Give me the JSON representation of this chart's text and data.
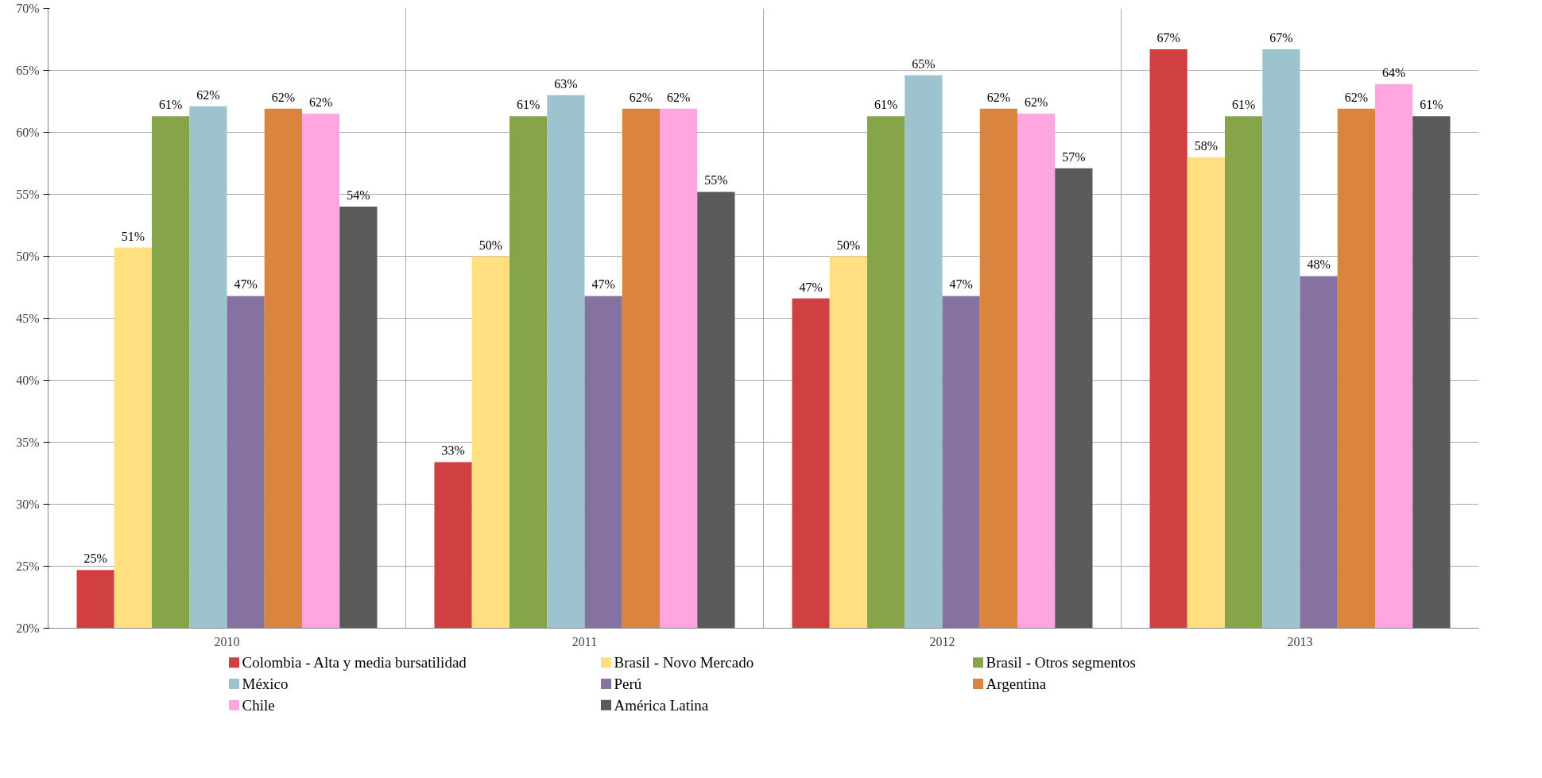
{
  "chart_data": {
    "type": "bar",
    "categories": [
      "2010",
      "2011",
      "2012",
      "2013"
    ],
    "series": [
      {
        "name": "Colombia - Alta y media bursatilidad",
        "color": "#d04040",
        "values": [
          24.7,
          33.4,
          46.6,
          66.7
        ],
        "value_labels": [
          "25%",
          "33%",
          "47%",
          "67%"
        ]
      },
      {
        "name": "Brasil - Novo Mercado",
        "color": "#ffdf80",
        "values": [
          50.7,
          50.0,
          50.0,
          58.0
        ],
        "value_labels": [
          "51%",
          "50%",
          "50%",
          "58%"
        ]
      },
      {
        "name": "Brasil - Otros segmentos",
        "color": "#86a44a",
        "values": [
          61.3,
          61.3,
          61.3,
          61.3
        ],
        "value_labels": [
          "61%",
          "61%",
          "61%",
          "61%"
        ]
      },
      {
        "name": "México",
        "color": "#9dc3cf",
        "values": [
          62.1,
          63.0,
          64.6,
          66.7
        ],
        "value_labels": [
          "62%",
          "63%",
          "65%",
          "67%"
        ]
      },
      {
        "name": "Perú",
        "color": "#8672a0",
        "values": [
          46.8,
          46.8,
          46.8,
          48.4
        ],
        "value_labels": [
          "47%",
          "47%",
          "47%",
          "48%"
        ]
      },
      {
        "name": "Argentina",
        "color": "#db843d",
        "values": [
          61.9,
          61.9,
          61.9,
          61.9
        ],
        "value_labels": [
          "62%",
          "62%",
          "62%",
          "62%"
        ]
      },
      {
        "name": "Chile",
        "color": "#ffa6e0",
        "values": [
          61.5,
          61.9,
          61.5,
          63.9
        ],
        "value_labels": [
          "62%",
          "62%",
          "62%",
          "64%"
        ]
      },
      {
        "name": "América Latina",
        "color": "#5a5a5a",
        "values": [
          54.0,
          55.2,
          57.1,
          61.3
        ],
        "value_labels": [
          "54%",
          "55%",
          "57%",
          "61%"
        ]
      }
    ],
    "ylim": [
      20,
      70
    ],
    "yticks": [
      {
        "value": 20,
        "label": "20%"
      },
      {
        "value": 25,
        "label": "25%"
      },
      {
        "value": 30,
        "label": "30%"
      },
      {
        "value": 35,
        "label": "35%"
      },
      {
        "value": 40,
        "label": "40%"
      },
      {
        "value": 45,
        "label": "45%"
      },
      {
        "value": 50,
        "label": "50%"
      },
      {
        "value": 55,
        "label": "55%"
      },
      {
        "value": 60,
        "label": "60%"
      },
      {
        "value": 65,
        "label": "65%"
      },
      {
        "value": 70,
        "label": "70%"
      }
    ],
    "grid": true,
    "legend": "bottom"
  }
}
